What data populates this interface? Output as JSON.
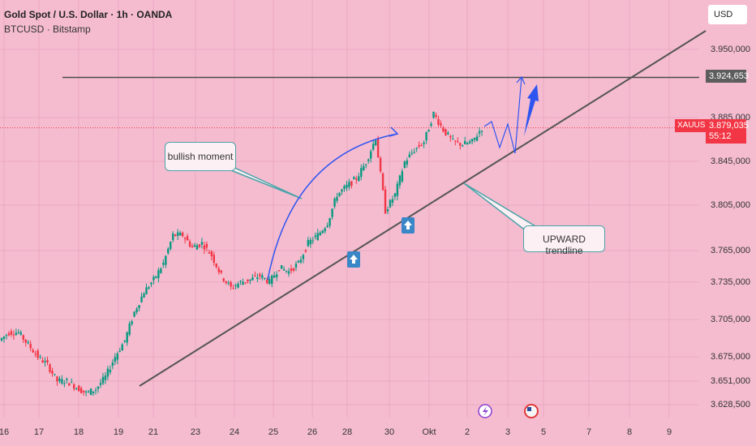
{
  "header": {
    "title": "Gold Spot / U.S. Dollar · 1h · OANDA",
    "subtitle": "BTCUSD · Bitstamp"
  },
  "price_axis": {
    "currency": "USD",
    "ticks": [
      "3.950,000",
      "3.885,000",
      "3.845,000",
      "3.805,000",
      "3.765,000",
      "3.735,000",
      "3.705,000",
      "3.675,000",
      "3.651,000",
      "3.628,500"
    ],
    "level_label": "3.924,653",
    "current_symbol": "XAUUSD",
    "current_price": "3.879,035",
    "countdown": "55:12"
  },
  "time_axis": {
    "ticks": [
      "16",
      "17",
      "18",
      "19",
      "21",
      "23",
      "24",
      "25",
      "26",
      "28",
      "30",
      "Okt",
      "2",
      "3",
      "5",
      "7",
      "8",
      "9"
    ]
  },
  "annotations": {
    "bullish": "bullish moment",
    "trend": "UPWARD trendline"
  },
  "colors": {
    "background": "#f5bcd0",
    "up": "#089981",
    "down": "#f23645",
    "arrow": "#2f55f0",
    "trendline": "#555555"
  },
  "chart_data": {
    "type": "candlestick",
    "ylim": [
      3628500,
      3950000
    ],
    "horizontal_level": 3924653,
    "current_price": 3879035,
    "closes": [
      3686500,
      3693800,
      3693800,
      3682800,
      3671800,
      3664500,
      3649800,
      3649800,
      3643900,
      3638800,
      3642500,
      3653500,
      3671800,
      3686500,
      3712200,
      3730500,
      3741500,
      3756200,
      3781900,
      3781900,
      3770900,
      3774600,
      3763600,
      3745200,
      3734200,
      3739300,
      3741500,
      3745200,
      3739300,
      3752600,
      3748900,
      3756200,
      3774600,
      3781900,
      3792900,
      3818600,
      3826000,
      3833300,
      3848000,
      3870000,
      3803900,
      3818600,
      3848000,
      3859000,
      3866300,
      3892000,
      3877300,
      3866300,
      3864100,
      3866300,
      3879000
    ]
  }
}
